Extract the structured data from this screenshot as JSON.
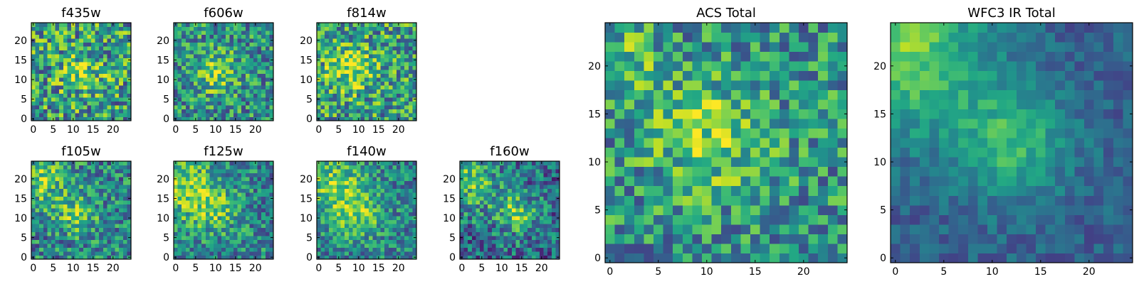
{
  "chart_data": {
    "type": "heatmap",
    "colormap": "viridis",
    "grid": false,
    "grid_size": 25,
    "panels": [
      {
        "id": "f435w",
        "title": "f435w",
        "xticks": [
          "0",
          "5",
          "10",
          "15",
          "20"
        ],
        "yticks": [
          "0",
          "5",
          "10",
          "15",
          "20"
        ],
        "xlim": [
          0,
          24
        ],
        "ylim": [
          0,
          24
        ],
        "blobs": [
          {
            "cx": 12,
            "cy": 12,
            "r": 5,
            "amp": 0.25
          }
        ],
        "noise": 0.38,
        "base": 0.55,
        "seed": 11
      },
      {
        "id": "f606w",
        "title": "f606w",
        "xticks": [
          "0",
          "5",
          "10",
          "15",
          "20"
        ],
        "yticks": [
          "0",
          "5",
          "10",
          "15",
          "20"
        ],
        "xlim": [
          0,
          24
        ],
        "ylim": [
          0,
          24
        ],
        "blobs": [
          {
            "cx": 10,
            "cy": 12,
            "r": 5,
            "amp": 0.35
          }
        ],
        "noise": 0.32,
        "base": 0.5,
        "seed": 23
      },
      {
        "id": "f814w",
        "title": "f814w",
        "xticks": [
          "0",
          "5",
          "10",
          "15",
          "20"
        ],
        "yticks": [
          "0",
          "5",
          "10",
          "15",
          "20"
        ],
        "xlim": [
          0,
          24
        ],
        "ylim": [
          0,
          24
        ],
        "blobs": [
          {
            "cx": 8,
            "cy": 13,
            "r": 6,
            "amp": 0.3
          }
        ],
        "noise": 0.35,
        "base": 0.55,
        "seed": 37
      },
      {
        "id": "f105w",
        "title": "f105w",
        "xticks": [
          "0",
          "5",
          "10",
          "15",
          "20"
        ],
        "yticks": [
          "0",
          "5",
          "10",
          "15",
          "20"
        ],
        "xlim": [
          0,
          24
        ],
        "ylim": [
          0,
          24
        ],
        "blobs": [
          {
            "cx": 2,
            "cy": 20,
            "r": 7,
            "amp": 0.3
          },
          {
            "cx": 11,
            "cy": 11,
            "r": 5,
            "amp": 0.3
          }
        ],
        "noise": 0.3,
        "base": 0.45,
        "seed": 41
      },
      {
        "id": "f125w",
        "title": "f125w",
        "xticks": [
          "0",
          "5",
          "10",
          "15",
          "20"
        ],
        "yticks": [
          "0",
          "5",
          "10",
          "15",
          "20"
        ],
        "xlim": [
          0,
          24
        ],
        "ylim": [
          0,
          24
        ],
        "blobs": [
          {
            "cx": 2,
            "cy": 18,
            "r": 8,
            "amp": 0.35
          },
          {
            "cx": 10,
            "cy": 12,
            "r": 6,
            "amp": 0.25
          }
        ],
        "noise": 0.28,
        "base": 0.45,
        "seed": 53
      },
      {
        "id": "f140w",
        "title": "f140w",
        "xticks": [
          "0",
          "5",
          "10",
          "15",
          "20"
        ],
        "yticks": [
          "0",
          "5",
          "10",
          "15",
          "20"
        ],
        "xlim": [
          0,
          24
        ],
        "ylim": [
          0,
          24
        ],
        "blobs": [
          {
            "cx": 4,
            "cy": 18,
            "r": 7,
            "amp": 0.35
          },
          {
            "cx": 10,
            "cy": 11,
            "r": 6,
            "amp": 0.3
          }
        ],
        "noise": 0.26,
        "base": 0.45,
        "seed": 67
      },
      {
        "id": "f160w",
        "title": "f160w",
        "xticks": [
          "0",
          "5",
          "10",
          "15",
          "20"
        ],
        "yticks": [
          "0",
          "5",
          "10",
          "15",
          "20"
        ],
        "xlim": [
          0,
          24
        ],
        "ylim": [
          0,
          24
        ],
        "blobs": [
          {
            "cx": 2,
            "cy": 19,
            "r": 8,
            "amp": 0.35
          },
          {
            "cx": 14,
            "cy": 11,
            "r": 5,
            "amp": 0.4
          }
        ],
        "noise": 0.3,
        "base": 0.35,
        "seed": 79
      },
      {
        "id": "acs-total",
        "title": "ACS Total",
        "xticks": [
          "0",
          "5",
          "10",
          "15",
          "20"
        ],
        "yticks": [
          "0",
          "5",
          "10",
          "15",
          "20"
        ],
        "xlim": [
          0,
          24
        ],
        "ylim": [
          0,
          24
        ],
        "blobs": [
          {
            "cx": 10,
            "cy": 13,
            "r": 6,
            "amp": 0.3
          },
          {
            "cx": 2,
            "cy": 21,
            "r": 4,
            "amp": 0.15
          }
        ],
        "noise": 0.3,
        "base": 0.5,
        "seed": 97
      },
      {
        "id": "wfc3-ir-total",
        "title": "WFC3 IR Total",
        "xticks": [
          "0",
          "5",
          "10",
          "15",
          "20"
        ],
        "yticks": [
          "0",
          "5",
          "10",
          "15",
          "20"
        ],
        "xlim": [
          0,
          24
        ],
        "ylim": [
          0,
          24
        ],
        "blobs": [
          {
            "cx": 0,
            "cy": 22,
            "r": 9,
            "amp": 0.5
          },
          {
            "cx": 12,
            "cy": 12,
            "r": 6,
            "amp": 0.35
          }
        ],
        "noise": 0.12,
        "base": 0.3,
        "seed": 113
      }
    ]
  }
}
